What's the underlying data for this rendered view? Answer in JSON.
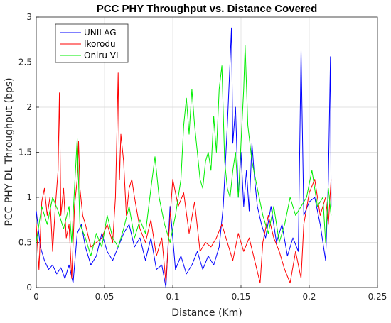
{
  "chart_data": {
    "type": "line",
    "title": "PCC PHY Throughput vs. Distance Covered",
    "xlabel": "Distance (Km)",
    "ylabel": "PCC PHY DL Throughput (bps)",
    "xlim": [
      0,
      0.25
    ],
    "ylim": [
      0,
      3
    ],
    "x_ticks": [
      "0",
      "0.05",
      "0.1",
      "0.15",
      "0.2",
      "0.25"
    ],
    "y_ticks": [
      "0",
      "0.5",
      "1",
      "1.5",
      "2",
      "2.5",
      "3"
    ],
    "grid": true,
    "legend_position": "top-left",
    "series": [
      {
        "name": "UNILAG",
        "color": "#0000ff",
        "points": [
          [
            0.0,
            0.85
          ],
          [
            0.003,
            0.45
          ],
          [
            0.006,
            0.3
          ],
          [
            0.009,
            0.2
          ],
          [
            0.012,
            0.25
          ],
          [
            0.015,
            0.15
          ],
          [
            0.018,
            0.22
          ],
          [
            0.021,
            0.1
          ],
          [
            0.024,
            0.25
          ],
          [
            0.027,
            0.05
          ],
          [
            0.03,
            0.6
          ],
          [
            0.033,
            0.7
          ],
          [
            0.036,
            0.45
          ],
          [
            0.04,
            0.25
          ],
          [
            0.044,
            0.35
          ],
          [
            0.048,
            0.6
          ],
          [
            0.052,
            0.4
          ],
          [
            0.056,
            0.3
          ],
          [
            0.06,
            0.45
          ],
          [
            0.064,
            0.6
          ],
          [
            0.068,
            0.7
          ],
          [
            0.072,
            0.45
          ],
          [
            0.076,
            0.55
          ],
          [
            0.08,
            0.3
          ],
          [
            0.084,
            0.55
          ],
          [
            0.088,
            0.2
          ],
          [
            0.092,
            0.25
          ],
          [
            0.095,
            0.0
          ],
          [
            0.098,
            0.9
          ],
          [
            0.102,
            0.2
          ],
          [
            0.106,
            0.35
          ],
          [
            0.11,
            0.15
          ],
          [
            0.114,
            0.25
          ],
          [
            0.118,
            0.4
          ],
          [
            0.122,
            0.2
          ],
          [
            0.126,
            0.35
          ],
          [
            0.13,
            0.25
          ],
          [
            0.134,
            0.45
          ],
          [
            0.137,
            0.9
          ],
          [
            0.14,
            1.8
          ],
          [
            0.142,
            2.5
          ],
          [
            0.143,
            2.88
          ],
          [
            0.144,
            1.6
          ],
          [
            0.146,
            2.0
          ],
          [
            0.148,
            1.0
          ],
          [
            0.15,
            1.5
          ],
          [
            0.152,
            0.9
          ],
          [
            0.154,
            1.3
          ],
          [
            0.156,
            0.85
          ],
          [
            0.158,
            1.6
          ],
          [
            0.16,
            1.2
          ],
          [
            0.162,
            0.9
          ],
          [
            0.165,
            0.7
          ],
          [
            0.168,
            0.55
          ],
          [
            0.172,
            0.9
          ],
          [
            0.176,
            0.5
          ],
          [
            0.18,
            0.7
          ],
          [
            0.184,
            0.35
          ],
          [
            0.188,
            0.55
          ],
          [
            0.192,
            0.4
          ],
          [
            0.194,
            2.63
          ],
          [
            0.196,
            0.8
          ],
          [
            0.2,
            0.95
          ],
          [
            0.204,
            1.0
          ],
          [
            0.208,
            0.7
          ],
          [
            0.212,
            0.3
          ],
          [
            0.214,
            1.2
          ],
          [
            0.2155,
            2.56
          ],
          [
            0.216,
            0.9
          ]
        ]
      },
      {
        "name": "Ikorodu",
        "color": "#ff0000",
        "points": [
          [
            0.0,
            0.7
          ],
          [
            0.002,
            0.2
          ],
          [
            0.004,
            0.95
          ],
          [
            0.006,
            1.1
          ],
          [
            0.008,
            0.8
          ],
          [
            0.01,
            1.0
          ],
          [
            0.012,
            0.4
          ],
          [
            0.014,
            0.9
          ],
          [
            0.016,
            1.3
          ],
          [
            0.017,
            2.16
          ],
          [
            0.018,
            0.8
          ],
          [
            0.02,
            1.1
          ],
          [
            0.022,
            0.55
          ],
          [
            0.024,
            0.7
          ],
          [
            0.026,
            0.1
          ],
          [
            0.028,
            0.9
          ],
          [
            0.03,
            1.2
          ],
          [
            0.031,
            1.62
          ],
          [
            0.032,
            1.1
          ],
          [
            0.034,
            0.8
          ],
          [
            0.036,
            0.7
          ],
          [
            0.04,
            0.45
          ],
          [
            0.044,
            0.5
          ],
          [
            0.048,
            0.55
          ],
          [
            0.052,
            0.7
          ],
          [
            0.056,
            0.5
          ],
          [
            0.058,
            1.0
          ],
          [
            0.059,
            1.65
          ],
          [
            0.06,
            2.38
          ],
          [
            0.061,
            1.2
          ],
          [
            0.062,
            1.7
          ],
          [
            0.064,
            1.4
          ],
          [
            0.066,
            0.8
          ],
          [
            0.068,
            1.1
          ],
          [
            0.07,
            1.2
          ],
          [
            0.072,
            1.0
          ],
          [
            0.076,
            0.65
          ],
          [
            0.08,
            0.5
          ],
          [
            0.084,
            0.75
          ],
          [
            0.088,
            0.35
          ],
          [
            0.092,
            0.55
          ],
          [
            0.095,
            0.05
          ],
          [
            0.097,
            0.55
          ],
          [
            0.1,
            1.2
          ],
          [
            0.104,
            0.9
          ],
          [
            0.108,
            1.05
          ],
          [
            0.112,
            0.6
          ],
          [
            0.116,
            0.95
          ],
          [
            0.12,
            0.4
          ],
          [
            0.124,
            0.5
          ],
          [
            0.128,
            0.45
          ],
          [
            0.132,
            0.55
          ],
          [
            0.136,
            0.7
          ],
          [
            0.14,
            0.5
          ],
          [
            0.144,
            0.3
          ],
          [
            0.148,
            0.6
          ],
          [
            0.152,
            0.4
          ],
          [
            0.156,
            0.55
          ],
          [
            0.16,
            0.3
          ],
          [
            0.164,
            0.05
          ],
          [
            0.166,
            0.5
          ],
          [
            0.17,
            0.8
          ],
          [
            0.174,
            0.55
          ],
          [
            0.178,
            0.4
          ],
          [
            0.182,
            0.2
          ],
          [
            0.186,
            0.05
          ],
          [
            0.19,
            0.4
          ],
          [
            0.194,
            0.1
          ],
          [
            0.196,
            0.7
          ],
          [
            0.2,
            1.05
          ],
          [
            0.204,
            1.2
          ],
          [
            0.208,
            0.8
          ],
          [
            0.212,
            1.0
          ],
          [
            0.214,
            0.7
          ],
          [
            0.216,
            1.2
          ]
        ]
      },
      {
        "name": "Oniru VI",
        "color": "#00ee00",
        "points": [
          [
            0.0,
            0.5
          ],
          [
            0.004,
            0.9
          ],
          [
            0.008,
            0.7
          ],
          [
            0.012,
            1.0
          ],
          [
            0.016,
            0.85
          ],
          [
            0.02,
            0.65
          ],
          [
            0.024,
            0.9
          ],
          [
            0.026,
            0.5
          ],
          [
            0.028,
            1.1
          ],
          [
            0.03,
            1.65
          ],
          [
            0.032,
            0.7
          ],
          [
            0.036,
            0.55
          ],
          [
            0.04,
            0.35
          ],
          [
            0.044,
            0.6
          ],
          [
            0.048,
            0.45
          ],
          [
            0.052,
            0.8
          ],
          [
            0.056,
            0.55
          ],
          [
            0.06,
            0.45
          ],
          [
            0.064,
            0.65
          ],
          [
            0.068,
            0.9
          ],
          [
            0.072,
            0.55
          ],
          [
            0.076,
            0.75
          ],
          [
            0.08,
            0.6
          ],
          [
            0.084,
            1.1
          ],
          [
            0.087,
            1.45
          ],
          [
            0.09,
            1.0
          ],
          [
            0.094,
            0.7
          ],
          [
            0.098,
            0.5
          ],
          [
            0.102,
            0.8
          ],
          [
            0.106,
            1.2
          ],
          [
            0.108,
            1.8
          ],
          [
            0.11,
            2.1
          ],
          [
            0.112,
            1.7
          ],
          [
            0.114,
            2.2
          ],
          [
            0.116,
            1.8
          ],
          [
            0.118,
            1.5
          ],
          [
            0.12,
            1.2
          ],
          [
            0.122,
            1.1
          ],
          [
            0.124,
            1.4
          ],
          [
            0.126,
            1.5
          ],
          [
            0.128,
            1.3
          ],
          [
            0.13,
            1.9
          ],
          [
            0.132,
            1.5
          ],
          [
            0.134,
            2.2
          ],
          [
            0.136,
            2.46
          ],
          [
            0.138,
            1.4
          ],
          [
            0.14,
            1.1
          ],
          [
            0.142,
            1.0
          ],
          [
            0.144,
            1.3
          ],
          [
            0.146,
            1.5
          ],
          [
            0.148,
            1.0
          ],
          [
            0.15,
            1.6
          ],
          [
            0.152,
            2.2
          ],
          [
            0.153,
            2.69
          ],
          [
            0.155,
            1.8
          ],
          [
            0.158,
            1.4
          ],
          [
            0.162,
            1.1
          ],
          [
            0.166,
            0.8
          ],
          [
            0.17,
            0.6
          ],
          [
            0.174,
            0.9
          ],
          [
            0.178,
            0.5
          ],
          [
            0.182,
            0.7
          ],
          [
            0.186,
            1.0
          ],
          [
            0.19,
            0.8
          ],
          [
            0.194,
            0.9
          ],
          [
            0.198,
            1.0
          ],
          [
            0.202,
            1.3
          ],
          [
            0.206,
            0.9
          ],
          [
            0.21,
            1.0
          ],
          [
            0.212,
            0.5
          ],
          [
            0.214,
            1.1
          ],
          [
            0.216,
            0.8
          ]
        ]
      }
    ]
  }
}
